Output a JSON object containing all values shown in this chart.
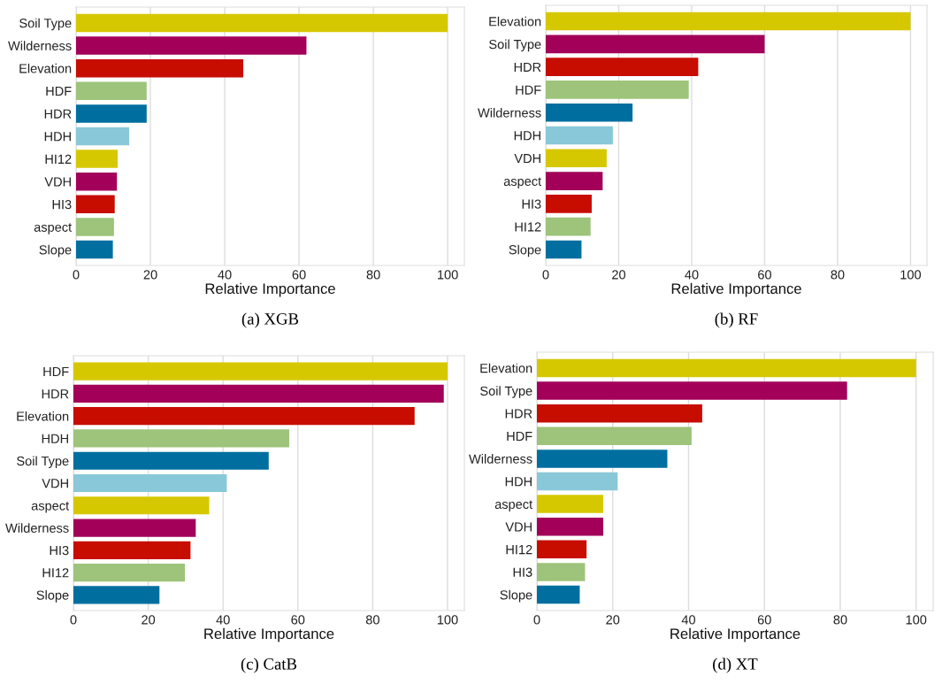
{
  "chart_data": [
    {
      "type": "bar",
      "orientation": "horizontal",
      "xlabel": "Relative Importance",
      "annotations": [
        "(a) XGB"
      ],
      "categories": [
        "Soil Type",
        "Wilderness",
        "Elevation",
        "HDF",
        "HDR",
        "HDH",
        "HI12",
        "VDH",
        "HI3",
        "aspect",
        "Slope"
      ],
      "values": [
        100,
        62,
        45,
        19,
        19,
        14.3,
        11.2,
        11,
        10.4,
        10.2,
        9.9
      ],
      "colors": [
        "#d6c800",
        "#a3005a",
        "#c70c00",
        "#9dc47a",
        "#006fa0",
        "#89c8d8",
        "#d6c800",
        "#a3005a",
        "#c70c00",
        "#9dc47a",
        "#006fa0"
      ],
      "xlim": [
        0,
        104.5
      ],
      "xticks": [
        0,
        20,
        40,
        60,
        80,
        100
      ],
      "grid": "x"
    },
    {
      "type": "bar",
      "orientation": "horizontal",
      "xlabel": "Relative Importance",
      "annotations": [
        "(b) RF"
      ],
      "categories": [
        "Elevation",
        "Soil Type",
        "HDR",
        "HDF",
        "Wilderness",
        "HDH",
        "VDH",
        "aspect",
        "HI3",
        "HI12",
        "Slope"
      ],
      "values": [
        100,
        60,
        41.8,
        39.2,
        23.8,
        18.4,
        16.7,
        15.6,
        12.6,
        12.3,
        9.8
      ],
      "colors": [
        "#d6c800",
        "#a3005a",
        "#c70c00",
        "#9dc47a",
        "#006fa0",
        "#89c8d8",
        "#d6c800",
        "#a3005a",
        "#c70c00",
        "#9dc47a",
        "#006fa0"
      ],
      "xlim": [
        0,
        104.5
      ],
      "xticks": [
        0,
        20,
        40,
        60,
        80,
        100
      ],
      "grid": "x"
    },
    {
      "type": "bar",
      "orientation": "horizontal",
      "xlabel": "Relative Importance",
      "annotations": [
        "(c) CatB"
      ],
      "categories": [
        "HDF",
        "HDR",
        "Elevation",
        "HDH",
        "Soil Type",
        "VDH",
        "aspect",
        "Wilderness",
        "HI3",
        "HI12",
        "Slope"
      ],
      "values": [
        100,
        99,
        91.2,
        57.7,
        52.2,
        41,
        36.3,
        32.7,
        31.3,
        29.8,
        23
      ],
      "colors": [
        "#d6c800",
        "#a3005a",
        "#c70c00",
        "#9dc47a",
        "#006fa0",
        "#89c8d8",
        "#d6c800",
        "#a3005a",
        "#c70c00",
        "#9dc47a",
        "#006fa0"
      ],
      "xlim": [
        0,
        104.5
      ],
      "xticks": [
        0,
        20,
        40,
        60,
        80,
        100
      ],
      "grid": "x"
    },
    {
      "type": "bar",
      "orientation": "horizontal",
      "xlabel": "Relative Importance",
      "annotations": [
        "(d) XT"
      ],
      "categories": [
        "Elevation",
        "Soil Type",
        "HDR",
        "HDF",
        "Wilderness",
        "HDH",
        "aspect",
        "VDH",
        "HI12",
        "HI3",
        "Slope"
      ],
      "values": [
        100,
        81.8,
        43.6,
        40.8,
        34.4,
        21.3,
        17.5,
        17.5,
        13.1,
        12.7,
        11.3
      ],
      "colors": [
        "#d6c800",
        "#a3005a",
        "#c70c00",
        "#9dc47a",
        "#006fa0",
        "#89c8d8",
        "#d6c800",
        "#a3005a",
        "#c70c00",
        "#9dc47a",
        "#006fa0"
      ],
      "xlim": [
        0,
        104.5
      ],
      "xticks": [
        0,
        20,
        40,
        60,
        80,
        100
      ],
      "grid": "x"
    }
  ]
}
